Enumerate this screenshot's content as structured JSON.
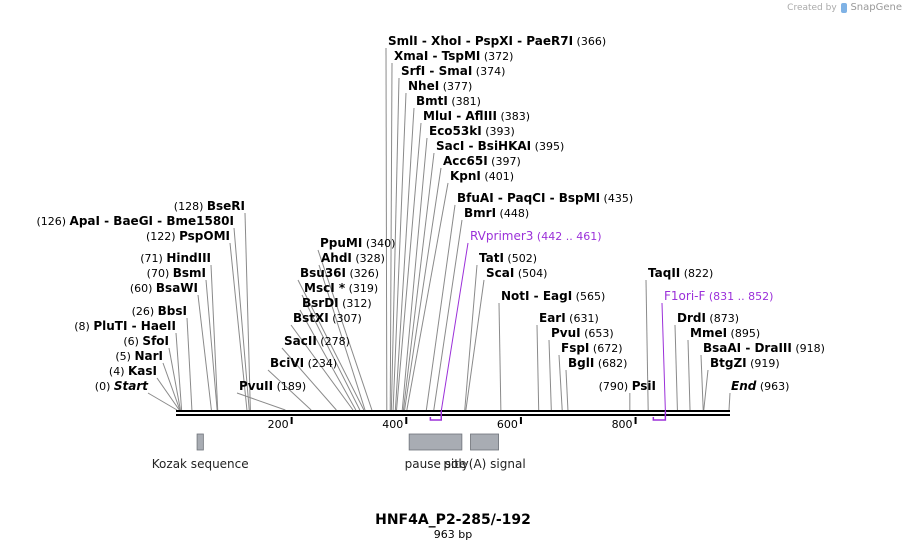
{
  "credit": {
    "created_by": "Created by",
    "brand": "SnapGene"
  },
  "sequence": {
    "name": "HNF4A_P2-285/-192",
    "length_label": "963 bp",
    "length": 963
  },
  "axis": {
    "ticks": [
      200,
      400,
      600,
      800
    ]
  },
  "sites": [
    {
      "pos": 0,
      "name": "Start",
      "pos_label": "(0)",
      "italic": true
    },
    {
      "pos": 4,
      "name": "KasI",
      "pos_label": "(4)"
    },
    {
      "pos": 5,
      "name": "NarI",
      "pos_label": "(5)"
    },
    {
      "pos": 6,
      "name": "SfoI",
      "pos_label": "(6)"
    },
    {
      "pos": 8,
      "name": "PluTI  -  HaeII",
      "pos_label": "(8)"
    },
    {
      "pos": 26,
      "name": "BbsI",
      "pos_label": "(26)"
    },
    {
      "pos": 60,
      "name": "BsaWI",
      "pos_label": "(60)"
    },
    {
      "pos": 70,
      "name": "BsmI",
      "pos_label": "(70)"
    },
    {
      "pos": 71,
      "name": "HindIII",
      "pos_label": "(71)"
    },
    {
      "pos": 122,
      "name": "PspOMI",
      "pos_label": "(122)"
    },
    {
      "pos": 126,
      "name": "ApaI  -  BaeGI  -  Bme1580I",
      "pos_label": "(126)"
    },
    {
      "pos": 128,
      "name": "BseRI",
      "pos_label": "(128)"
    },
    {
      "pos": 189,
      "name": "PvuII",
      "pos_label": "(189)"
    },
    {
      "pos": 234,
      "name": "BciVI",
      "pos_label": "(234)"
    },
    {
      "pos": 278,
      "name": "SacII",
      "pos_label": "(278)"
    },
    {
      "pos": 307,
      "name": "BstXI",
      "pos_label": "(307)"
    },
    {
      "pos": 312,
      "name": "BsrDI",
      "pos_label": "(312)"
    },
    {
      "pos": 319,
      "name": "MscI *",
      "pos_label": "(319)"
    },
    {
      "pos": 326,
      "name": "Bsu36I",
      "pos_label": "(326)"
    },
    {
      "pos": 328,
      "name": "AhdI",
      "pos_label": "(328)"
    },
    {
      "pos": 340,
      "name": "PpuMI",
      "pos_label": "(340)"
    },
    {
      "pos": 366,
      "name": "SmlI  -  XhoI  -  PspXI  -  PaeR7I",
      "pos_label": "(366)"
    },
    {
      "pos": 372,
      "name": "XmaI  -  TspMI",
      "pos_label": "(372)"
    },
    {
      "pos": 374,
      "name": "SrfI  -  SmaI",
      "pos_label": "(374)"
    },
    {
      "pos": 377,
      "name": "NheI",
      "pos_label": "(377)"
    },
    {
      "pos": 381,
      "name": "BmtI",
      "pos_label": "(381)"
    },
    {
      "pos": 383,
      "name": "MluI  -  AflIII",
      "pos_label": "(383)"
    },
    {
      "pos": 393,
      "name": "Eco53kI",
      "pos_label": "(393)"
    },
    {
      "pos": 395,
      "name": "SacI  -  BsiHKAI",
      "pos_label": "(395)"
    },
    {
      "pos": 397,
      "name": "Acc65I",
      "pos_label": "(397)"
    },
    {
      "pos": 401,
      "name": "KpnI",
      "pos_label": "(401)"
    },
    {
      "pos": 435,
      "name": "BfuAI  -  PaqCI  -  BspMI",
      "pos_label": "(435)"
    },
    {
      "pos": 448,
      "name": "BmrI",
      "pos_label": "(448)"
    },
    {
      "pos": 502,
      "name": "TatI",
      "pos_label": "(502)"
    },
    {
      "pos": 504,
      "name": "ScaI",
      "pos_label": "(504)"
    },
    {
      "pos": 565,
      "name": "NotI  -  EagI",
      "pos_label": "(565)"
    },
    {
      "pos": 631,
      "name": "EarI",
      "pos_label": "(631)"
    },
    {
      "pos": 653,
      "name": "PvuI",
      "pos_label": "(653)"
    },
    {
      "pos": 672,
      "name": "FspI",
      "pos_label": "(672)"
    },
    {
      "pos": 682,
      "name": "BglI",
      "pos_label": "(682)"
    },
    {
      "pos": 790,
      "name": "PsiI",
      "pos_label": "(790)"
    },
    {
      "pos": 822,
      "name": "TaqII",
      "pos_label": "(822)"
    },
    {
      "pos": 873,
      "name": "DrdI",
      "pos_label": "(873)"
    },
    {
      "pos": 895,
      "name": "MmeI",
      "pos_label": "(895)"
    },
    {
      "pos": 918,
      "name": "BsaAI  -  DraIII",
      "pos_label": "(918)"
    },
    {
      "pos": 919,
      "name": "BtgZI",
      "pos_label": "(919)"
    },
    {
      "pos": 963,
      "name": "End",
      "pos_label": "(963)",
      "italic": true
    }
  ],
  "primers": [
    {
      "name": "RVprimer3",
      "range_label": "(442 .. 461)",
      "start": 442,
      "end": 461,
      "color": "#9b30d9"
    },
    {
      "name": "F1ori-F",
      "range_label": "(831 .. 852)",
      "start": 831,
      "end": 852,
      "color": "#9b30d9"
    }
  ],
  "features": [
    {
      "name": "Kozak sequence",
      "start": 35,
      "end": 46,
      "color": "#a8acb3"
    },
    {
      "name": "pause site",
      "start": 405,
      "end": 497,
      "color": "#a8acb3"
    },
    {
      "name": "poly(A) signal",
      "start": 512,
      "end": 561,
      "color": "#a8acb3"
    }
  ]
}
